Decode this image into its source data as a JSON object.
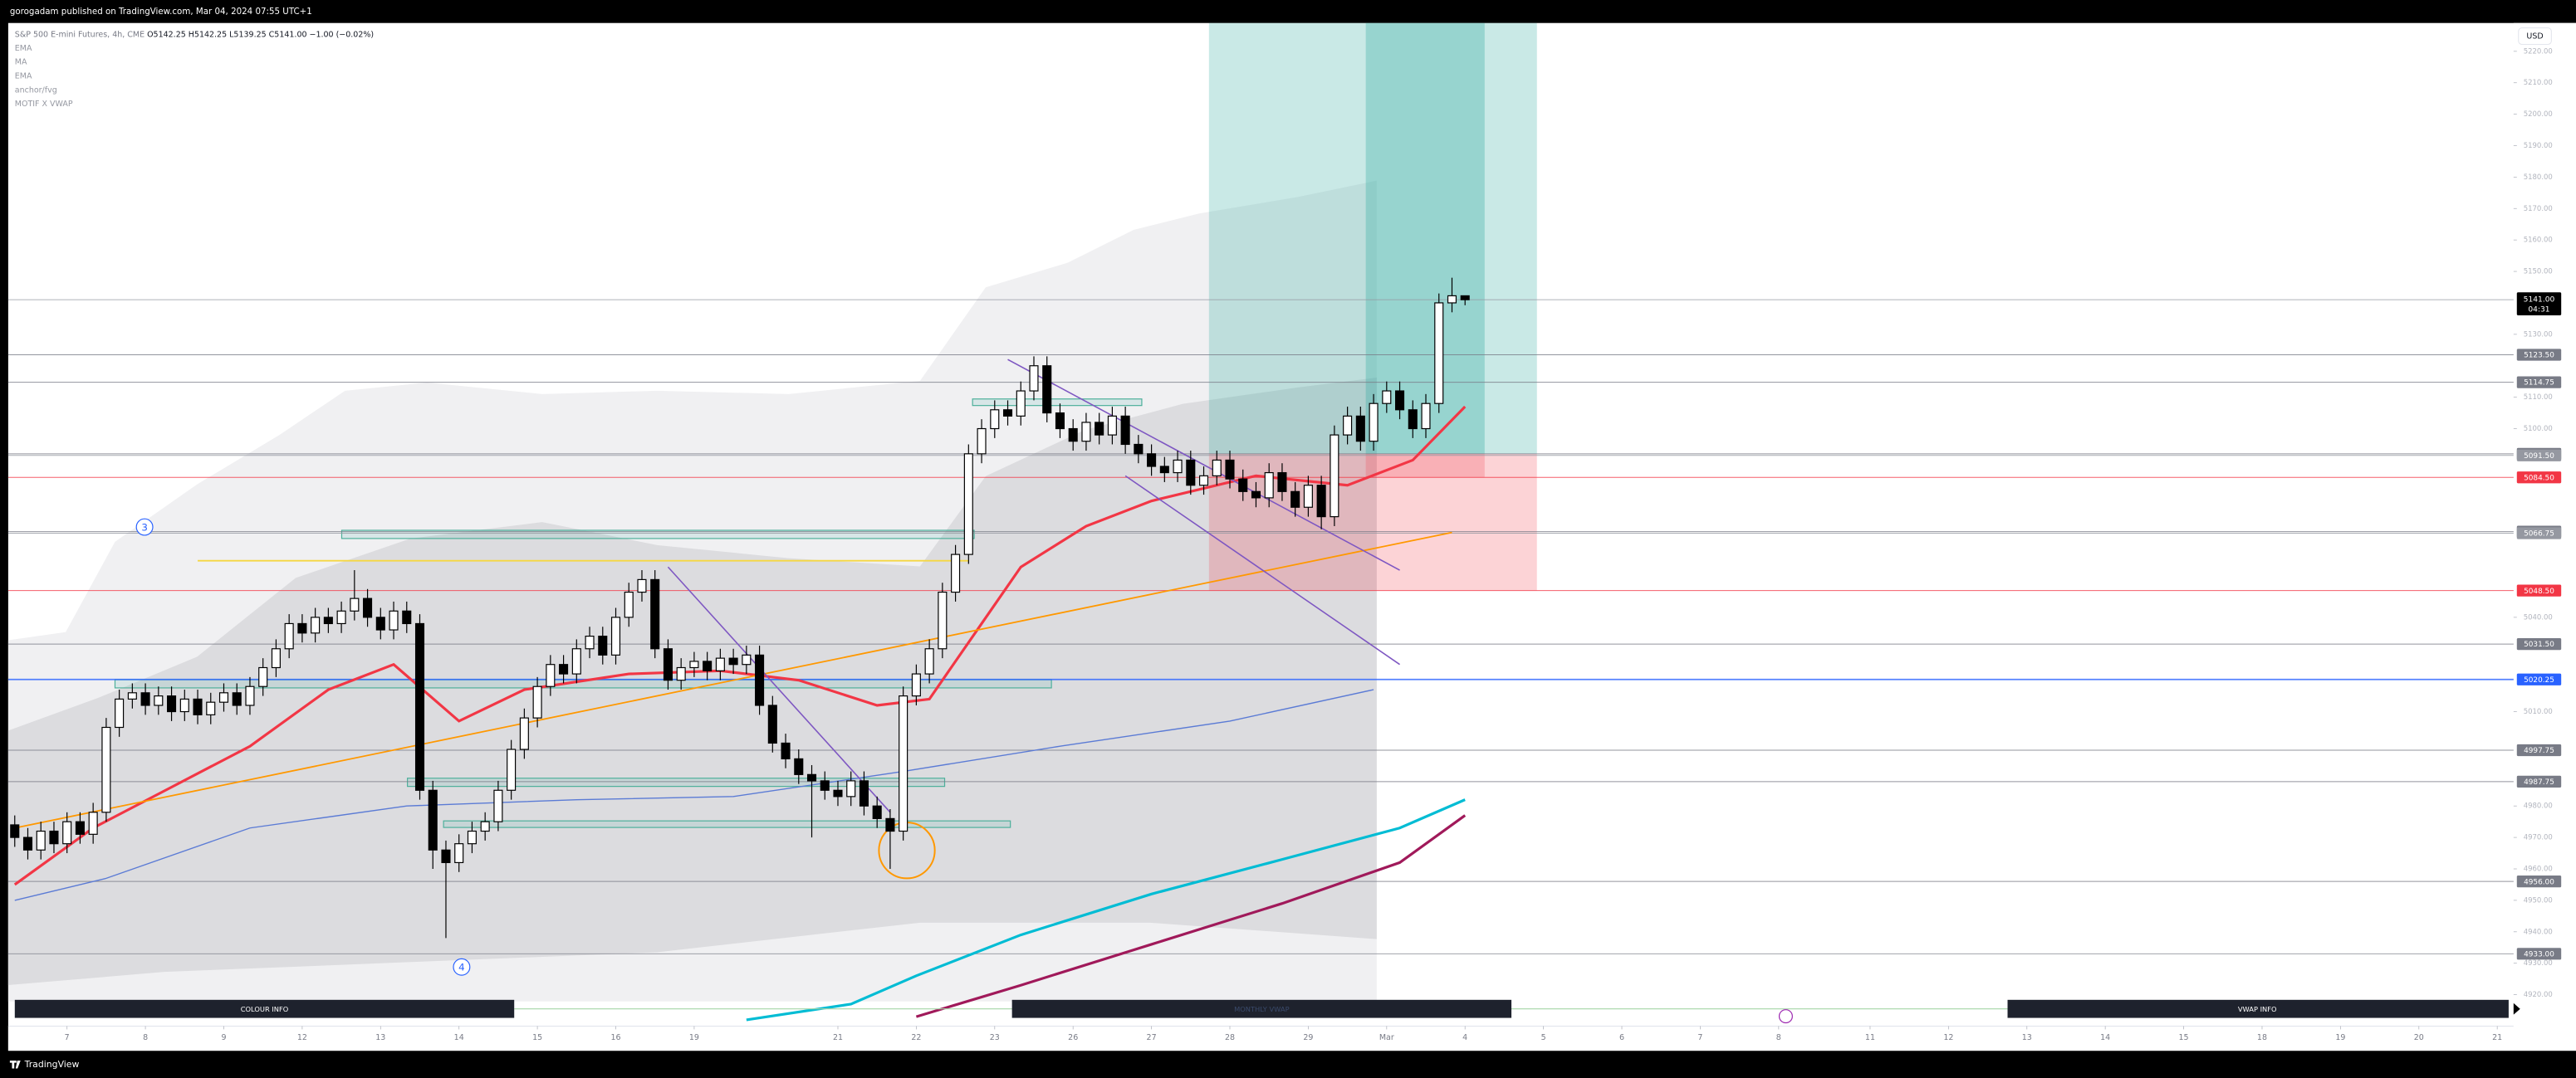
{
  "header": {
    "publisher": "gorogadam published on TradingView.com, Mar 04, 2024 07:55 UTC+1"
  },
  "footer": "TradingView",
  "chart_data": {
    "type": "candlestick",
    "symbol": "S&P 500 E-mini Futures, 4h, CME",
    "ohlc_text": "O5142.25 H5142.25 L5139.25 C5141.00 −1.00 (−0.02%)",
    "indicators": [
      "EMA",
      "MA",
      "EMA",
      "anchor/fvg",
      "MOTIF X VWAP"
    ],
    "currency": "USD",
    "info_bars": [
      "COLOUR INFO",
      "MONTHLY VWAP",
      "VWAP INFO"
    ],
    "annotations": [
      3,
      4
    ],
    "xlim": [
      -0.5,
      191.5
    ],
    "ylim": [
      4910,
      5229
    ],
    "xticks": [
      {
        "value": 4,
        "label": "7"
      },
      {
        "value": 10,
        "label": "8"
      },
      {
        "value": 16,
        "label": "9"
      },
      {
        "value": 22,
        "label": "12"
      },
      {
        "value": 28,
        "label": "13"
      },
      {
        "value": 34,
        "label": "14"
      },
      {
        "value": 40,
        "label": "15"
      },
      {
        "value": 46,
        "label": "16"
      },
      {
        "value": 52,
        "label": "19"
      },
      {
        "value": 63,
        "label": "21"
      },
      {
        "value": 69,
        "label": "22"
      },
      {
        "value": 75,
        "label": "23"
      },
      {
        "value": 81,
        "label": "26"
      },
      {
        "value": 87,
        "label": "27"
      },
      {
        "value": 93,
        "label": "28"
      },
      {
        "value": 99,
        "label": "29"
      },
      {
        "value": 105,
        "label": "Mar"
      },
      {
        "value": 111,
        "label": "4"
      },
      {
        "value": 117,
        "label": "5"
      },
      {
        "value": 123,
        "label": "6"
      },
      {
        "value": 129,
        "label": "7"
      },
      {
        "value": 135,
        "label": "8"
      },
      {
        "value": 142,
        "label": "11"
      },
      {
        "value": 148,
        "label": "12"
      },
      {
        "value": 154,
        "label": "13"
      },
      {
        "value": 160,
        "label": "14"
      },
      {
        "value": 166,
        "label": "15"
      },
      {
        "value": 172,
        "label": "18"
      },
      {
        "value": 178,
        "label": "19"
      },
      {
        "value": 184,
        "label": "20"
      },
      {
        "value": 190,
        "label": "21"
      }
    ],
    "yticks": [
      {
        "value": 5220,
        "label": "5220.00"
      },
      {
        "value": 5210,
        "label": "5210.00"
      },
      {
        "value": 5200,
        "label": "5200.00"
      },
      {
        "value": 5190,
        "label": "5190.00"
      },
      {
        "value": 5180,
        "label": "5180.00"
      },
      {
        "value": 5170,
        "label": "5170.00"
      },
      {
        "value": 5160,
        "label": "5160.00"
      },
      {
        "value": 5150,
        "label": "5150.00"
      },
      {
        "value": 5130,
        "label": "5130.00"
      },
      {
        "value": 5110,
        "label": "5110.00"
      },
      {
        "value": 5100,
        "label": "5100.00"
      },
      {
        "value": 5040,
        "label": "5040.00"
      },
      {
        "value": 5010,
        "label": "5010.00"
      },
      {
        "value": 4980,
        "label": "4980.00"
      },
      {
        "value": 4970,
        "label": "4970.00"
      },
      {
        "value": 4960,
        "label": "4960.00"
      },
      {
        "value": 4950,
        "label": "4950.00"
      },
      {
        "value": 4940,
        "label": "4940.00"
      },
      {
        "value": 4930,
        "label": "4930.00"
      },
      {
        "value": 4920,
        "label": "4920.00"
      }
    ],
    "ohlc": [
      [
        4974,
        4977,
        4967,
        4970
      ],
      [
        4970,
        4973,
        4963,
        4966
      ],
      [
        4966,
        4975,
        4963,
        4972
      ],
      [
        4972,
        4975,
        4965,
        4968
      ],
      [
        4968,
        4978,
        4965,
        4975
      ],
      [
        4975,
        4978,
        4968,
        4971
      ],
      [
        4971,
        4981,
        4968,
        4978
      ],
      [
        4978,
        5008,
        4975,
        5005
      ],
      [
        5005,
        5017,
        5002,
        5014
      ],
      [
        5014,
        5019,
        5011,
        5016
      ],
      [
        5016,
        5019,
        5009,
        5012
      ],
      [
        5012,
        5018,
        5009,
        5015
      ],
      [
        5015,
        5018,
        5007,
        5010
      ],
      [
        5010,
        5017,
        5007,
        5014
      ],
      [
        5014,
        5017,
        5006,
        5009
      ],
      [
        5009,
        5016,
        5006,
        5013
      ],
      [
        5013,
        5019,
        5010,
        5016
      ],
      [
        5016,
        5019,
        5009,
        5012
      ],
      [
        5012,
        5021,
        5009,
        5018
      ],
      [
        5018,
        5027,
        5015,
        5024
      ],
      [
        5024,
        5033,
        5021,
        5030
      ],
      [
        5030,
        5041,
        5027,
        5038
      ],
      [
        5038,
        5041,
        5032,
        5035
      ],
      [
        5035,
        5043,
        5032,
        5040
      ],
      [
        5040,
        5043,
        5035,
        5038
      ],
      [
        5038,
        5045,
        5035,
        5042
      ],
      [
        5042,
        5055,
        5039,
        5046
      ],
      [
        5046,
        5049,
        5037,
        5040
      ],
      [
        5040,
        5043,
        5033,
        5036
      ],
      [
        5036,
        5045,
        5033,
        5042
      ],
      [
        5042,
        5045,
        5035,
        5038
      ],
      [
        5038,
        5041,
        4982,
        4985
      ],
      [
        4985,
        4988,
        4960,
        4966
      ],
      [
        4966,
        4969,
        4938,
        4962
      ],
      [
        4962,
        4971,
        4959,
        4968
      ],
      [
        4968,
        4975,
        4965,
        4972
      ],
      [
        4972,
        4978,
        4969,
        4975
      ],
      [
        4975,
        4988,
        4972,
        4985
      ],
      [
        4985,
        5001,
        4982,
        4998
      ],
      [
        4998,
        5011,
        4995,
        5008
      ],
      [
        5008,
        5021,
        5005,
        5018
      ],
      [
        5018,
        5028,
        5015,
        5025
      ],
      [
        5025,
        5028,
        5019,
        5022
      ],
      [
        5022,
        5033,
        5019,
        5030
      ],
      [
        5030,
        5037,
        5027,
        5034
      ],
      [
        5034,
        5037,
        5025,
        5028
      ],
      [
        5028,
        5043,
        5025,
        5040
      ],
      [
        5040,
        5051,
        5037,
        5048
      ],
      [
        5048,
        5055,
        5045,
        5052
      ],
      [
        5052,
        5055,
        5027,
        5030
      ],
      [
        5030,
        5033,
        5017,
        5020
      ],
      [
        5020,
        5027,
        5017,
        5024
      ],
      [
        5024,
        5029,
        5021,
        5026
      ],
      [
        5026,
        5029,
        5020,
        5023
      ],
      [
        5023,
        5030,
        5020,
        5027
      ],
      [
        5027,
        5030,
        5022,
        5025
      ],
      [
        5025,
        5031,
        5022,
        5028
      ],
      [
        5028,
        5031,
        5009,
        5012
      ],
      [
        5012,
        5015,
        4997,
        5000
      ],
      [
        5000,
        5003,
        4992,
        4995
      ],
      [
        4995,
        4998,
        4987,
        4990
      ],
      [
        4990,
        4993,
        4970,
        4988
      ],
      [
        4988,
        4991,
        4982,
        4985
      ],
      [
        4985,
        4988,
        4980,
        4983
      ],
      [
        4983,
        4991,
        4980,
        4988
      ],
      [
        4988,
        4991,
        4977,
        4980
      ],
      [
        4980,
        4983,
        4973,
        4976
      ],
      [
        4976,
        4979,
        4960,
        4972
      ],
      [
        4972,
        5018,
        4969,
        5015
      ],
      [
        5015,
        5025,
        5012,
        5022
      ],
      [
        5022,
        5033,
        5019,
        5030
      ],
      [
        5030,
        5051,
        5027,
        5048
      ],
      [
        5048,
        5063,
        5045,
        5060
      ],
      [
        5060,
        5095,
        5057,
        5092
      ],
      [
        5092,
        5103,
        5089,
        5100
      ],
      [
        5100,
        5109,
        5097,
        5106
      ],
      [
        5106,
        5109,
        5101,
        5104
      ],
      [
        5104,
        5115,
        5101,
        5112
      ],
      [
        5112,
        5123,
        5109,
        5120
      ],
      [
        5120,
        5123,
        5102,
        5105
      ],
      [
        5105,
        5108,
        5097,
        5100
      ],
      [
        5100,
        5103,
        5093,
        5096
      ],
      [
        5096,
        5105,
        5093,
        5102
      ],
      [
        5102,
        5105,
        5095,
        5098
      ],
      [
        5098,
        5107,
        5095,
        5104
      ],
      [
        5104,
        5107,
        5092,
        5095
      ],
      [
        5095,
        5098,
        5089,
        5092
      ],
      [
        5092,
        5095,
        5085,
        5088
      ],
      [
        5088,
        5091,
        5083,
        5086
      ],
      [
        5086,
        5093,
        5083,
        5090
      ],
      [
        5090,
        5093,
        5079,
        5082
      ],
      [
        5082,
        5088,
        5079,
        5085
      ],
      [
        5085,
        5093,
        5082,
        5090
      ],
      [
        5090,
        5093,
        5081,
        5084
      ],
      [
        5084,
        5087,
        5077,
        5080
      ],
      [
        5080,
        5083,
        5075,
        5078
      ],
      [
        5078,
        5089,
        5075,
        5086
      ],
      [
        5086,
        5089,
        5077,
        5080
      ],
      [
        5080,
        5083,
        5072,
        5075
      ],
      [
        5075,
        5085,
        5072,
        5082
      ],
      [
        5082,
        5085,
        5068,
        5072
      ],
      [
        5072,
        5101,
        5069,
        5098
      ],
      [
        5098,
        5107,
        5095,
        5104
      ],
      [
        5104,
        5107,
        5093,
        5096
      ],
      [
        5096,
        5111,
        5093,
        5108
      ],
      [
        5108,
        5115,
        5105,
        5112
      ],
      [
        5112,
        5115,
        5103,
        5106
      ],
      [
        5106,
        5109,
        5097,
        5100
      ],
      [
        5100,
        5111,
        5097,
        5108
      ],
      [
        5108,
        5143,
        5105,
        5140
      ],
      [
        5140,
        5148,
        5137,
        5142.25
      ],
      [
        5142.25,
        5142.25,
        5139.25,
        5141
      ]
    ],
    "lines": [
      {
        "color": "#f23645",
        "width": 1.6,
        "x": [
          0,
          6,
          12,
          18,
          24,
          29,
          34,
          39,
          47,
          54,
          60,
          66,
          70,
          74,
          77,
          82,
          87,
          95,
          102,
          107,
          111
        ],
        "values": [
          4955,
          4973,
          4986,
          4999,
          5017,
          5025,
          5007,
          5017,
          5022,
          5023,
          5020,
          5012,
          5014,
          5038,
          5056,
          5069,
          5077,
          5085,
          5082,
          5090,
          5107
        ]
      },
      {
        "color": "#00bcd4",
        "width": 1.6,
        "x": [
          56,
          64,
          69,
          77,
          87,
          97,
          106,
          111
        ],
        "values": [
          4912,
          4917,
          4926,
          4939,
          4952,
          4963,
          4973,
          4982
        ]
      },
      {
        "color": "#a0195a",
        "width": 1.6,
        "x": [
          69,
          77,
          87,
          97,
          106,
          111
        ],
        "values": [
          4913,
          4923,
          4936,
          4949,
          4962,
          4977
        ]
      },
      {
        "color": "#5b7bd5",
        "width": 0.7,
        "x": [
          0,
          7,
          18,
          30,
          43,
          55,
          68,
          80,
          93,
          104
        ],
        "values": [
          4950,
          4957,
          4973,
          4980,
          4982,
          4983,
          4991,
          4999,
          5007,
          5017
        ]
      },
      {
        "color": "#ff9800",
        "width": 0.9,
        "x": [
          0,
          110
        ],
        "values": [
          4973,
          5067
        ]
      },
      {
        "color": "#f5d742",
        "width": 0.9,
        "x": [
          14,
          73
        ],
        "values": [
          5058,
          5058
        ]
      },
      {
        "color": "#7e57c2",
        "width": 0.8,
        "x": [
          76,
          106
        ],
        "values": [
          5122,
          5055
        ]
      },
      {
        "color": "#7e57c2",
        "width": 0.8,
        "x": [
          85,
          106
        ],
        "values": [
          5085,
          5025
        ]
      },
      {
        "color": "#7e57c2",
        "width": 0.8,
        "x": [
          50,
          67
        ],
        "values": [
          5056,
          4978
        ]
      }
    ],
    "positions": [
      {
        "x": [
          91.4,
          116.5
        ],
        "target": 5229,
        "entry": 5092,
        "stop": 5048.5
      },
      {
        "x": [
          103.4,
          112.5
        ],
        "target": 5229,
        "entry": 5092,
        "stop": 5084.5
      }
    ],
    "levels": [
      {
        "value": 5123.5,
        "label": "5123.50",
        "color": "#787b86"
      },
      {
        "value": 5114.75,
        "label": "5114.75",
        "color": "#787b86"
      },
      {
        "value": 5092,
        "label": "5092.00",
        "color": "#787b86"
      },
      {
        "value": 5091.5,
        "label": "5091.50",
        "color": "#9598a1"
      },
      {
        "value": 5084.5,
        "label": "5084.50",
        "color": "#f23645"
      },
      {
        "value": 5067.25,
        "label": "5067.25",
        "color": "#787b86"
      },
      {
        "value": 5066.75,
        "label": "5066.75",
        "color": "#9598a1"
      },
      {
        "value": 5048.5,
        "label": "5048.50",
        "color": "#f23645"
      },
      {
        "value": 5031.5,
        "label": "5031.50",
        "color": "#787b86"
      },
      {
        "value": 5020.25,
        "label": "5020.25",
        "color": "#2962ff"
      },
      {
        "value": 4997.75,
        "label": "4997.75",
        "color": "#787b86"
      },
      {
        "value": 4987.75,
        "label": "4987.75",
        "color": "#787b86"
      },
      {
        "value": 4956,
        "label": "4956.00",
        "color": "#787b86"
      },
      {
        "value": 4933,
        "label": "4933.00",
        "color": "#787b86"
      }
    ],
    "last": {
      "value": 5141,
      "label": "5141.00",
      "countdown": "04:31"
    }
  }
}
